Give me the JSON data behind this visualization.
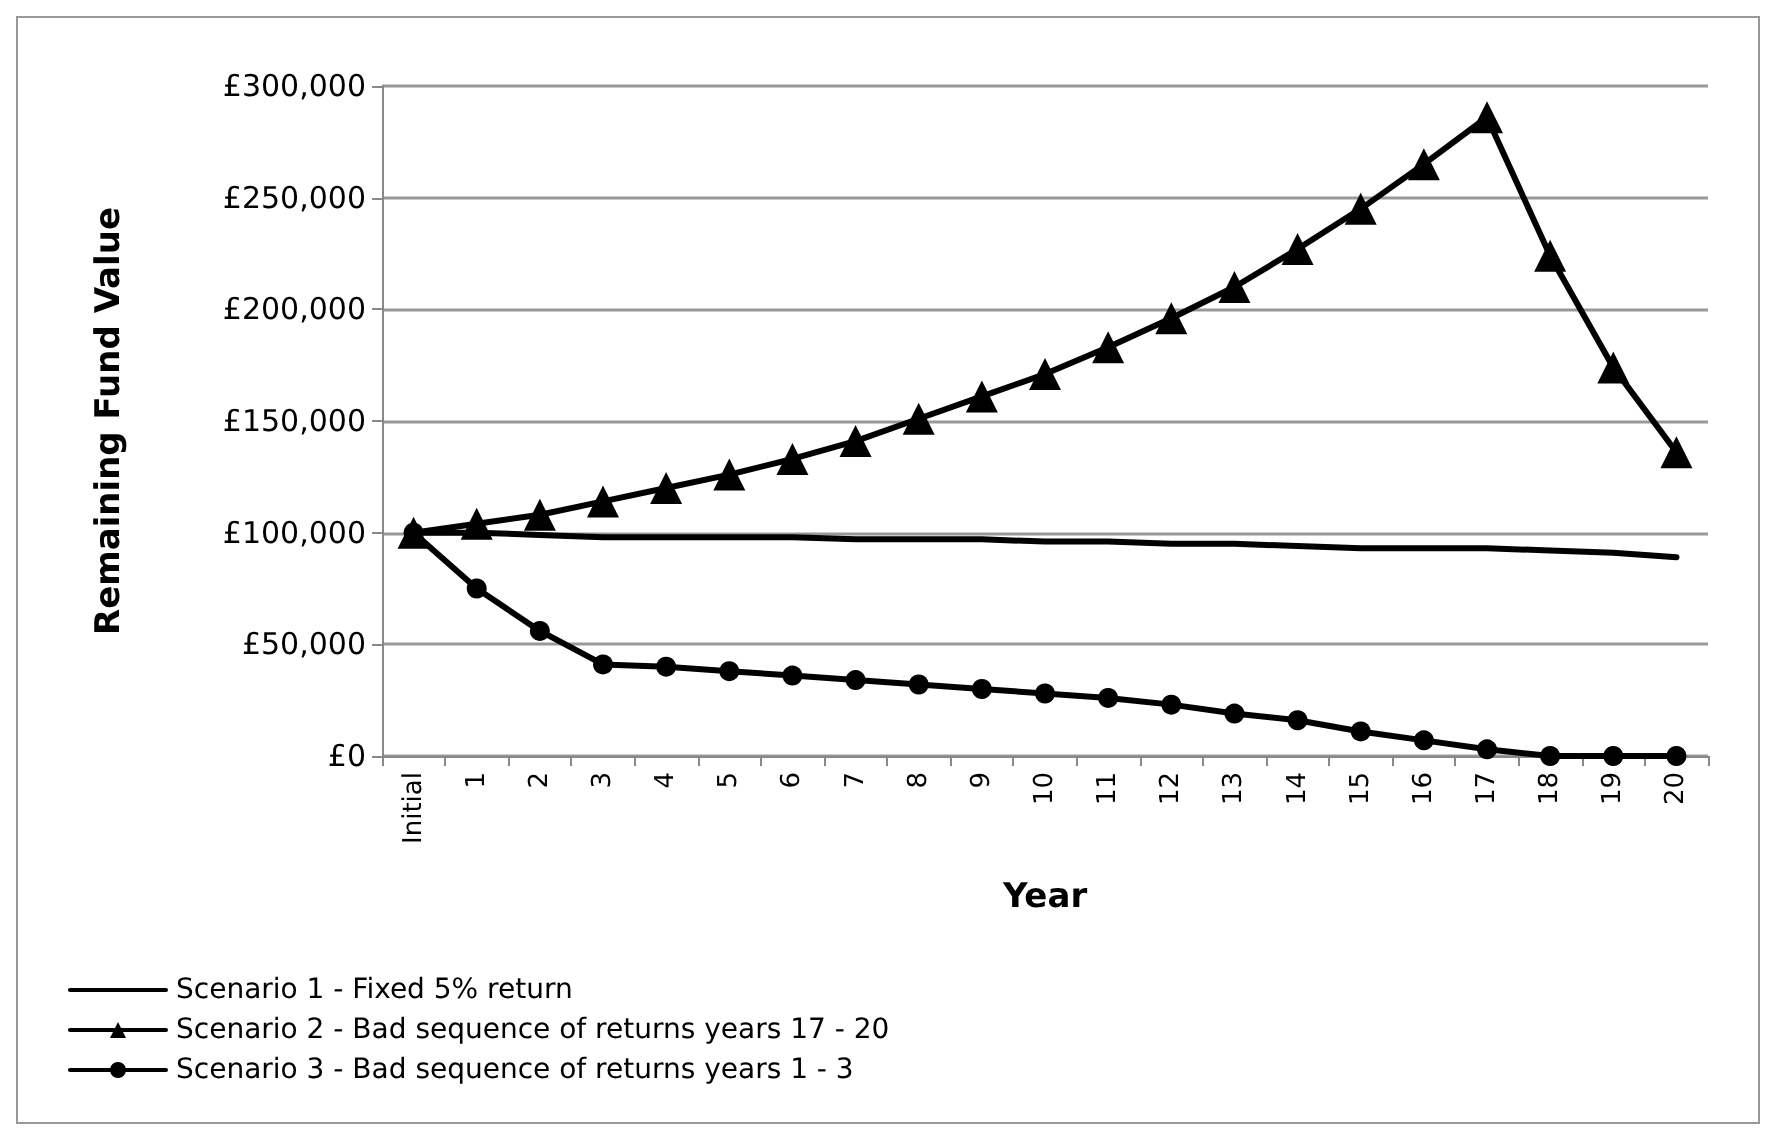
{
  "chart_data": {
    "type": "line",
    "xlabel": "Year",
    "ylabel": "Remaining Fund Value",
    "categories": [
      "Initial",
      "1",
      "2",
      "3",
      "4",
      "5",
      "6",
      "7",
      "8",
      "9",
      "10",
      "11",
      "12",
      "13",
      "14",
      "15",
      "16",
      "17",
      "18",
      "19",
      "20"
    ],
    "series": [
      {
        "name": "Scenario 1 - Fixed 5% return",
        "color": "#000000",
        "marker": "none",
        "values": [
          100000,
          100000,
          99000,
          98000,
          98000,
          98000,
          98000,
          97000,
          97000,
          97000,
          96000,
          96000,
          95000,
          95000,
          94000,
          93000,
          93000,
          93000,
          92000,
          91000,
          89000
        ]
      },
      {
        "name": "Scenario 2 - Bad sequence of returns years 17 - 20",
        "color": "#000000",
        "marker": "triangle",
        "values": [
          100000,
          104000,
          108000,
          114000,
          120000,
          126000,
          133000,
          141000,
          151000,
          161000,
          171000,
          183000,
          196000,
          210000,
          227000,
          245000,
          265000,
          286000,
          224000,
          174000,
          136000
        ]
      },
      {
        "name": "Scenario 3 - Bad sequence of returns years 1 - 3",
        "color": "#000000",
        "marker": "circle",
        "values": [
          100000,
          75000,
          56000,
          41000,
          40000,
          38000,
          36000,
          34000,
          32000,
          30000,
          28000,
          26000,
          23000,
          19000,
          16000,
          11000,
          7000,
          3000,
          0,
          0,
          0
        ]
      }
    ],
    "ylim": [
      0,
      300000
    ],
    "yticks": [
      {
        "value": 0,
        "label": "£0"
      },
      {
        "value": 50000,
        "label": "£50,000"
      },
      {
        "value": 100000,
        "label": "£100,000"
      },
      {
        "value": 150000,
        "label": "£150,000"
      },
      {
        "value": 200000,
        "label": "£200,000"
      },
      {
        "value": 250000,
        "label": "£250,000"
      },
      {
        "value": 300000,
        "label": "£300,000"
      }
    ],
    "grid": "y",
    "legend": "bottom left",
    "line_style": "solid"
  }
}
